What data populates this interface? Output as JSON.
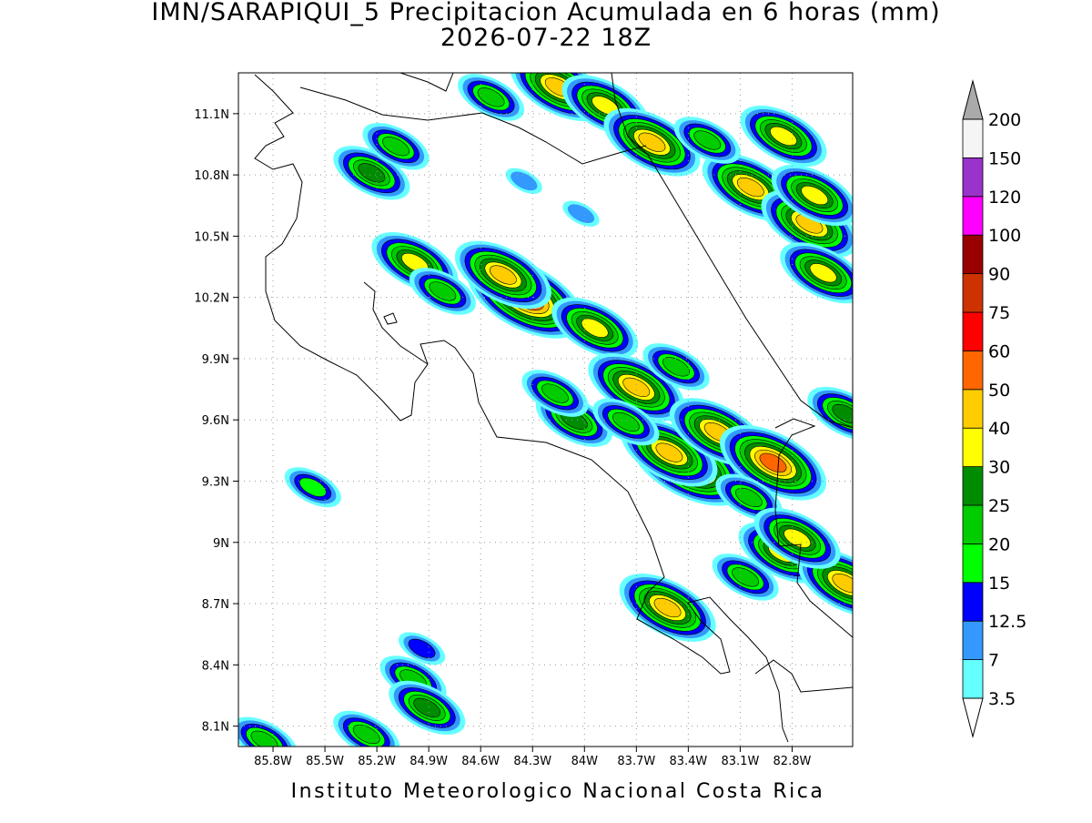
{
  "chart_data": {
    "type": "map",
    "title": "IMN/SARAPIQUI_5 Precipitacion Acumulada en 6 horas (mm)",
    "subtitle": "2026-07-22 18Z",
    "footer": "Instituto Meteorologico Nacional Costa Rica",
    "xlim": [
      -86.0,
      -82.45
    ],
    "ylim": [
      8.0,
      11.3
    ],
    "xticks": [
      {
        "value": -85.8,
        "label": "85.8W"
      },
      {
        "value": -85.5,
        "label": "85.5W"
      },
      {
        "value": -85.2,
        "label": "85.2W"
      },
      {
        "value": -84.9,
        "label": "84.9W"
      },
      {
        "value": -84.6,
        "label": "84.6W"
      },
      {
        "value": -84.3,
        "label": "84.3W"
      },
      {
        "value": -84.0,
        "label": "84W"
      },
      {
        "value": -83.7,
        "label": "83.7W"
      },
      {
        "value": -83.4,
        "label": "83.4W"
      },
      {
        "value": -83.1,
        "label": "83.1W"
      },
      {
        "value": -82.8,
        "label": "82.8W"
      }
    ],
    "yticks": [
      {
        "value": 8.1,
        "label": "8.1N"
      },
      {
        "value": 8.4,
        "label": "8.4N"
      },
      {
        "value": 8.7,
        "label": "8.7N"
      },
      {
        "value": 9.0,
        "label": "9N"
      },
      {
        "value": 9.3,
        "label": "9.3N"
      },
      {
        "value": 9.6,
        "label": "9.6N"
      },
      {
        "value": 9.9,
        "label": "9.9N"
      },
      {
        "value": 10.2,
        "label": "10.2N"
      },
      {
        "value": 10.5,
        "label": "10.5N"
      },
      {
        "value": 10.8,
        "label": "10.8N"
      },
      {
        "value": 11.1,
        "label": "11.1N"
      }
    ],
    "grid": true,
    "colorbar": {
      "levels": [
        3.5,
        7,
        12.5,
        15,
        20,
        25,
        30,
        40,
        50,
        60,
        75,
        90,
        100,
        120,
        150,
        200
      ],
      "colors": [
        "#66ffff",
        "#3399ff",
        "#0000ff",
        "#00ff00",
        "#00cc00",
        "#008c00",
        "#ffff00",
        "#ffcc00",
        "#ff6600",
        "#ff0000",
        "#cc3300",
        "#990000",
        "#ff00ff",
        "#9933cc",
        "#f5f5f5"
      ],
      "under_color": "#ffffff",
      "over_color": "#aaaaaa"
    },
    "lon": [
      -85.57,
      -84.98,
      -84.82,
      -84.34,
      -84.47,
      -83.94,
      -83.7,
      -83.4,
      -83.51,
      -83.23,
      -82.91,
      -84.06,
      -83.76,
      -83.47,
      -84.17,
      -83.05,
      -83.52,
      -83.07,
      -82.86,
      -82.49,
      -82.77,
      -84.99,
      -84.91,
      -84.94,
      -85.26,
      -85.85,
      -85.23,
      -85.09,
      -84.15,
      -83.88,
      -84.54,
      -83.61,
      -83.04,
      -82.7,
      -82.62,
      -82.67,
      -83.29,
      -84.35,
      -84.02,
      -82.85,
      -82.49
    ],
    "lat": [
      9.27,
      10.37,
      10.23,
      10.2,
      10.31,
      10.05,
      9.76,
      9.38,
      9.44,
      9.54,
      9.39,
      9.6,
      9.59,
      9.86,
      9.73,
      9.22,
      8.68,
      8.83,
      8.95,
      8.8,
      9.02,
      8.33,
      8.19,
      8.48,
      8.06,
      8.03,
      10.81,
      10.94,
      11.23,
      11.14,
      11.18,
      10.96,
      10.74,
      10.56,
      10.32,
      10.7,
      10.97,
      10.77,
      10.61,
      10.99,
      9.63
    ],
    "values": [
      15,
      30,
      20,
      60,
      40,
      30,
      40,
      60,
      40,
      40,
      50,
      25,
      20,
      20,
      20,
      20,
      40,
      20,
      30,
      40,
      30,
      20,
      25,
      12.5,
      20,
      20,
      25,
      20,
      40,
      30,
      20,
      40,
      40,
      40,
      30,
      30,
      20,
      7,
      7,
      30,
      25
    ]
  }
}
